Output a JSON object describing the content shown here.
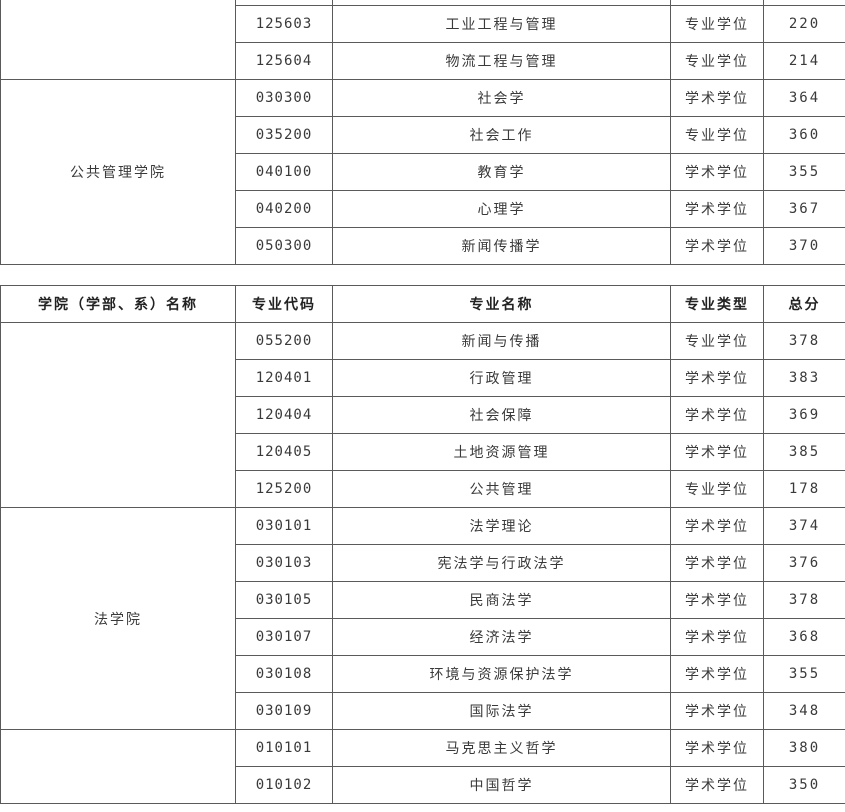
{
  "table_top": {
    "groups": [
      {
        "college": "",
        "rows": [
          {
            "code": "",
            "name": "",
            "type": "",
            "score": ""
          },
          {
            "code": "125603",
            "name": "工业工程与管理",
            "type": "专业学位",
            "score": "220"
          },
          {
            "code": "125604",
            "name": "物流工程与管理",
            "type": "专业学位",
            "score": "214"
          }
        ]
      },
      {
        "college": "公共管理学院",
        "rows": [
          {
            "code": "030300",
            "name": "社会学",
            "type": "学术学位",
            "score": "364"
          },
          {
            "code": "035200",
            "name": "社会工作",
            "type": "专业学位",
            "score": "360"
          },
          {
            "code": "040100",
            "name": "教育学",
            "type": "学术学位",
            "score": "355"
          },
          {
            "code": "040200",
            "name": "心理学",
            "type": "学术学位",
            "score": "367"
          },
          {
            "code": "050300",
            "name": "新闻传播学",
            "type": "学术学位",
            "score": "370"
          }
        ]
      }
    ]
  },
  "table_bottom": {
    "headers": [
      "学院（学部、系）名称",
      "专业代码",
      "专业名称",
      "专业类型",
      "总分"
    ],
    "groups": [
      {
        "college": "",
        "rows": [
          {
            "code": "055200",
            "name": "新闻与传播",
            "type": "专业学位",
            "score": "378"
          },
          {
            "code": "120401",
            "name": "行政管理",
            "type": "学术学位",
            "score": "383"
          },
          {
            "code": "120404",
            "name": "社会保障",
            "type": "学术学位",
            "score": "369"
          },
          {
            "code": "120405",
            "name": "土地资源管理",
            "type": "学术学位",
            "score": "385"
          },
          {
            "code": "125200",
            "name": "公共管理",
            "type": "专业学位",
            "score": "178"
          }
        ]
      },
      {
        "college": "法学院",
        "rows": [
          {
            "code": "030101",
            "name": "法学理论",
            "type": "学术学位",
            "score": "374"
          },
          {
            "code": "030103",
            "name": "宪法学与行政法学",
            "type": "学术学位",
            "score": "376"
          },
          {
            "code": "030105",
            "name": "民商法学",
            "type": "学术学位",
            "score": "378"
          },
          {
            "code": "030107",
            "name": "经济法学",
            "type": "学术学位",
            "score": "368"
          },
          {
            "code": "030108",
            "name": "环境与资源保护法学",
            "type": "学术学位",
            "score": "355"
          },
          {
            "code": "030109",
            "name": "国际法学",
            "type": "学术学位",
            "score": "348"
          }
        ]
      },
      {
        "college": "",
        "rows": [
          {
            "code": "010101",
            "name": "马克思主义哲学",
            "type": "学术学位",
            "score": "380"
          },
          {
            "code": "010102",
            "name": "中国哲学",
            "type": "学术学位",
            "score": "350"
          }
        ]
      }
    ]
  }
}
